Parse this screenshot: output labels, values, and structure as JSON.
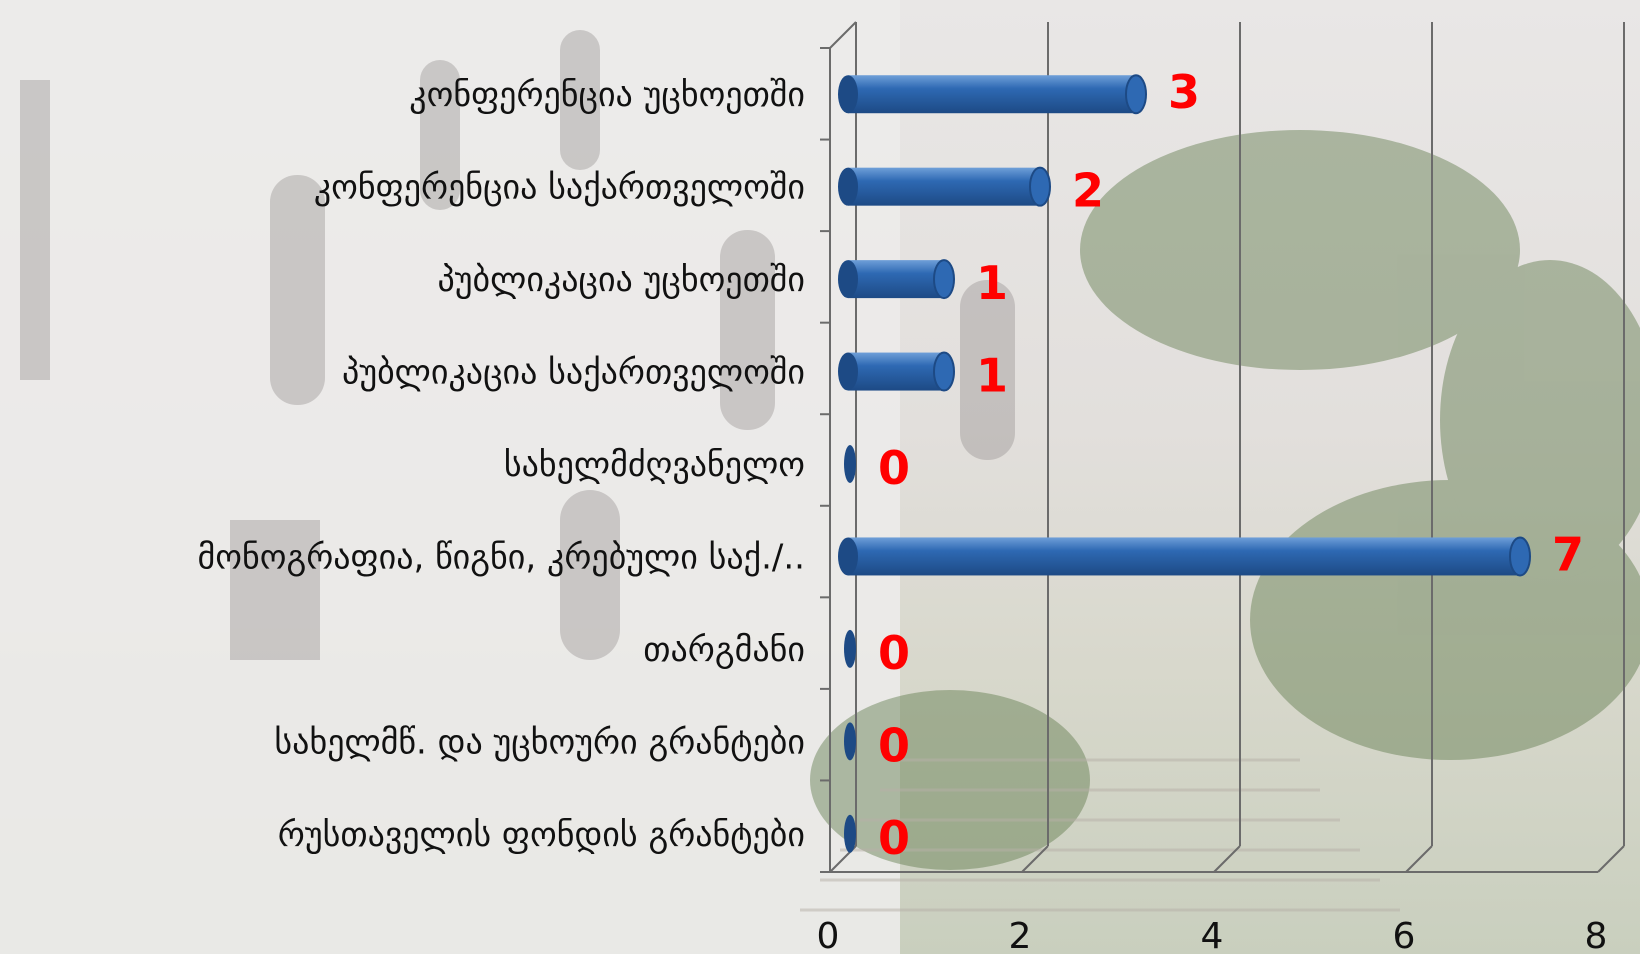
{
  "chart_data": {
    "type": "bar",
    "orientation": "horizontal",
    "style": "3d-cylinder",
    "categories": [
      "კონფერენცია უცხოეთში",
      "კონფერენცია საქართველოში",
      "პუბლიკაცია უცხოეთში",
      "პუბლიკაცია საქართველოში",
      "სახელმძღვანელო",
      "მონოგრაფია, წიგნი, კრებული საქ./..",
      "თარგმანი",
      "სახელმწ. და უცხოური გრანტები",
      "რუსთაველის ფონდის გრანტები"
    ],
    "values": [
      3,
      2,
      1,
      1,
      0,
      7,
      0,
      0,
      0
    ],
    "value_labels": [
      "3",
      "2",
      "1",
      "1",
      "0",
      "7",
      "0",
      "0",
      "0"
    ],
    "xlim": [
      0,
      8
    ],
    "xticks": [
      0,
      2,
      4,
      6,
      8
    ],
    "tick_labels": [
      "0",
      "2",
      "4",
      "6",
      "8"
    ],
    "grid": true,
    "legend": "none",
    "colors": {
      "bar": "#2e69b3",
      "bar_dark": "#1d4a85",
      "bar_light": "#6f9fd8",
      "value_label": "#ff0000",
      "grid": "#6b6b6b"
    }
  }
}
